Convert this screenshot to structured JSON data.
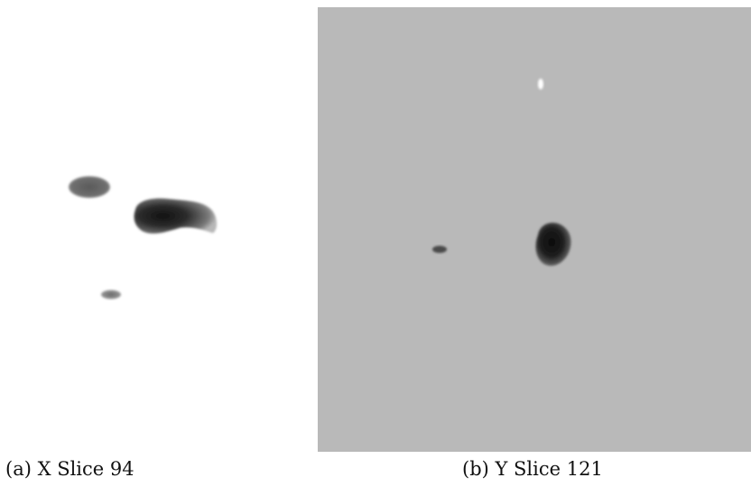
{
  "figure": {
    "panels": [
      {
        "id": "a",
        "caption": "(a) X Slice 94",
        "background": "#ffffff"
      },
      {
        "id": "b",
        "caption": "(b) Y Slice 121",
        "background": "#b9b9b9"
      }
    ]
  },
  "colors": {
    "blob_dark": "#151515",
    "blob_mid": "#6e6e6e",
    "blob_light": "#8f8f8f",
    "highlight": "#ffffff"
  }
}
